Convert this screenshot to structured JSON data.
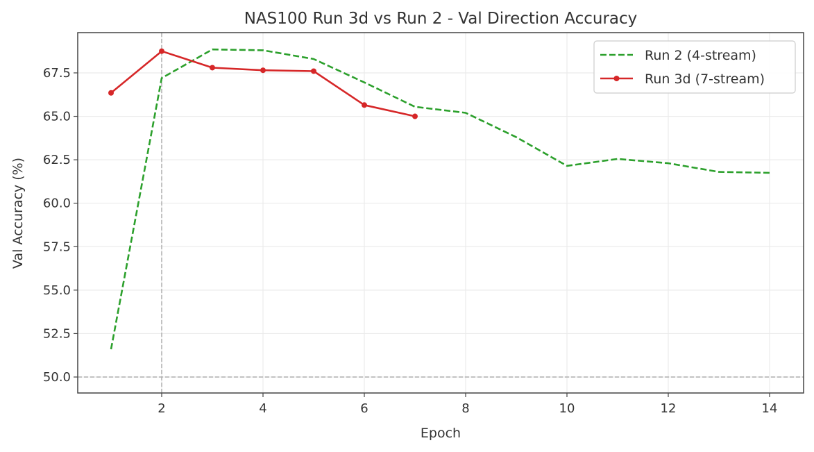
{
  "chart_data": {
    "type": "line",
    "title": "NAS100 Run 3d vs Run 2 - Val Direction Accuracy",
    "xlabel": "Epoch",
    "ylabel": "Val Accuracy (%)",
    "xlim": [
      0.3,
      14.7
    ],
    "ylim": [
      49.1,
      69.75
    ],
    "xticks": [
      2,
      4,
      6,
      8,
      10,
      12,
      14
    ],
    "yticks": [
      50.0,
      52.5,
      55.0,
      57.5,
      60.0,
      62.5,
      65.0,
      67.5
    ],
    "ytick_labels": [
      "50.0",
      "52.5",
      "55.0",
      "57.5",
      "60.0",
      "62.5",
      "65.0",
      "67.5"
    ],
    "grid": true,
    "legend_position": "upper right",
    "annotations": [
      {
        "type": "hline",
        "y": 50.0,
        "style": "dashed",
        "color": "#b0b0b0"
      },
      {
        "type": "vline",
        "x": 2,
        "style": "dashed",
        "color": "#b0b0b0"
      }
    ],
    "series": [
      {
        "name": "Run 2 (4-stream)",
        "color": "#2ca02c",
        "style": "dashed",
        "marker": false,
        "x": [
          1,
          2,
          3,
          4,
          5,
          6,
          7,
          8,
          9,
          10,
          11,
          12,
          13,
          14
        ],
        "values": [
          51.6,
          67.2,
          68.85,
          68.8,
          68.3,
          66.95,
          65.55,
          65.2,
          63.8,
          62.15,
          62.55,
          62.3,
          61.8,
          61.75
        ]
      },
      {
        "name": "Run 3d (7-stream)",
        "color": "#d62728",
        "style": "solid",
        "marker": true,
        "x": [
          1,
          2,
          3,
          4,
          5,
          6,
          7
        ],
        "values": [
          66.35,
          68.75,
          67.8,
          67.65,
          67.6,
          65.65,
          65.0
        ]
      }
    ]
  }
}
